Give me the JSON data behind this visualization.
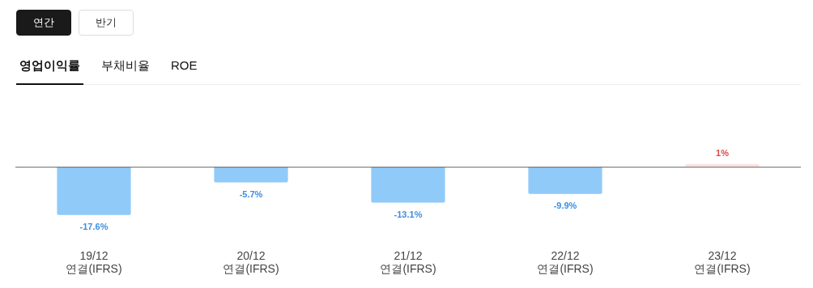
{
  "chart_data": {
    "type": "bar",
    "annotations": [
      "연간",
      "반기",
      "영업이익률",
      "부채비율",
      "ROE"
    ],
    "categories": [
      "19/12\n연결(IFRS)",
      "20/12\n연결(IFRS)",
      "21/12\n연결(IFRS)",
      "22/12\n연결(IFRS)",
      "23/12\n연결(IFRS)"
    ],
    "values": [
      -17.6,
      -5.7,
      -13.1,
      -9.9,
      1
    ],
    "value_labels": [
      "-17.6%",
      "-5.7%",
      "-13.1%",
      "-9.9%",
      "1%"
    ],
    "colors": [
      "#90caf9",
      "#90caf9",
      "#90caf9",
      "#90caf9",
      "#fde0e0"
    ],
    "grid": false,
    "legend": false
  }
}
